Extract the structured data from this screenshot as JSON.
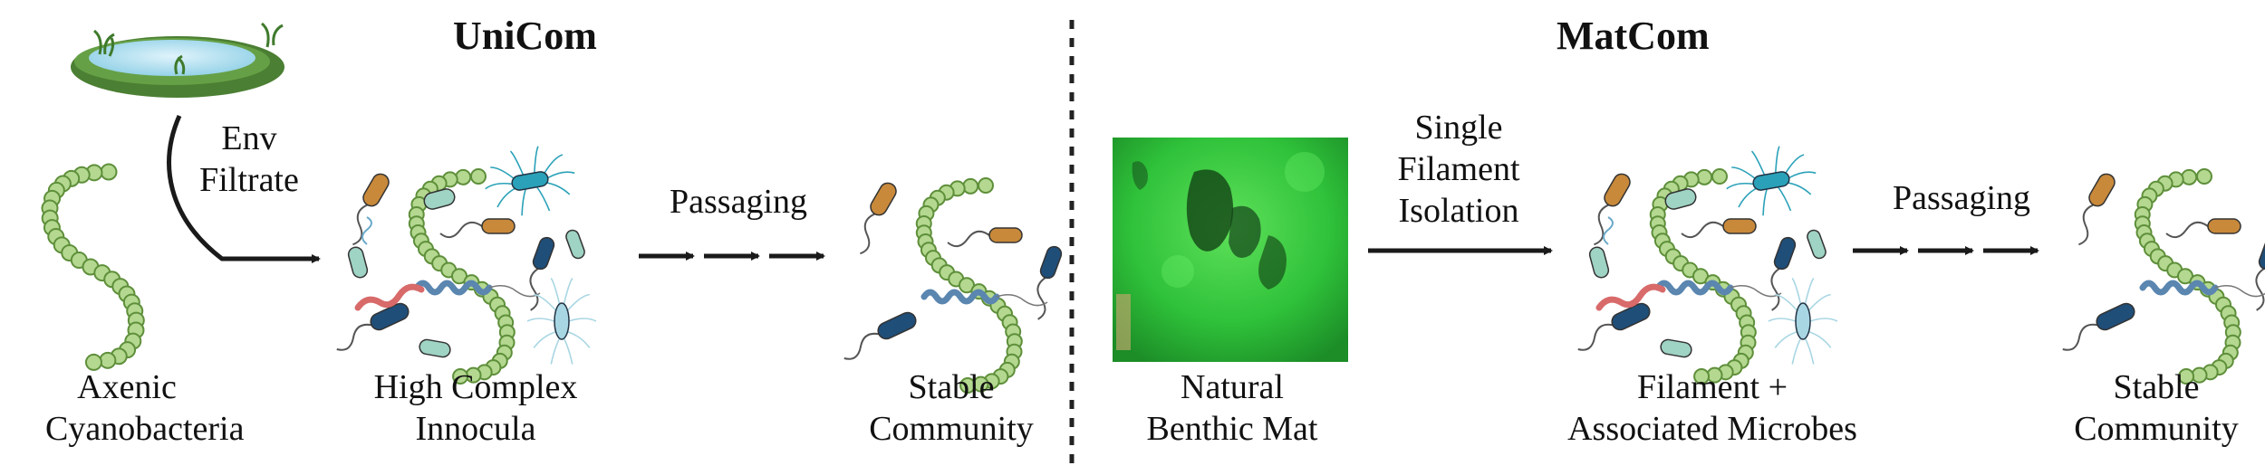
{
  "unicom": {
    "title": "UniCom",
    "axenic_label": [
      "Axenic",
      "Cyanobacteria"
    ],
    "env_label": [
      "Env",
      "Filtrate"
    ],
    "high_label": [
      "High Complex",
      "Innocula"
    ],
    "passaging_label": "Passaging",
    "stable_label": [
      "Stable",
      "Community"
    ]
  },
  "matcom": {
    "title": "MatCom",
    "natural_label": [
      "Natural",
      "Benthic Mat"
    ],
    "isolation_label": [
      "Single",
      "Filament",
      "Isolation"
    ],
    "filament_label": [
      "Filament +",
      "Associated Microbes"
    ],
    "passaging_label": "Passaging",
    "stable_label": [
      "Stable",
      "Community"
    ]
  },
  "colors": {
    "filament_fill": "#b4d890",
    "filament_stroke": "#5e8f3a",
    "mat_green": "#2fc23a",
    "arrow": "#1a1a1a",
    "microbe_orange": "#c8893a",
    "microbe_navy": "#1f4e79",
    "microbe_teal": "#2aa1b8",
    "microbe_mint": "#9fd3c4",
    "microbe_red": "#d86a6a",
    "microbe_blue": "#5a86b0"
  }
}
